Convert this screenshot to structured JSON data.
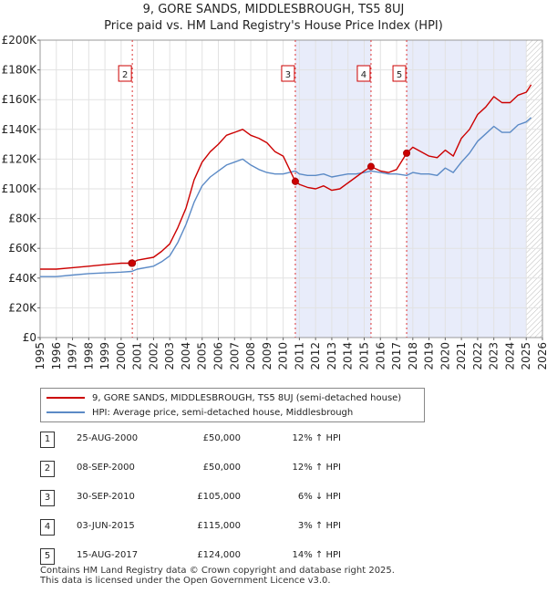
{
  "chart_data": {
    "type": "line",
    "title": "9, GORE SANDS, MIDDLESBROUGH, TS5 8UJ",
    "subtitle": "Price paid vs. HM Land Registry's House Price Index (HPI)",
    "xlim": [
      1995,
      2026
    ],
    "ylim": [
      0,
      200000
    ],
    "x_ticks": [
      "1995",
      "1996",
      "1997",
      "1998",
      "1999",
      "2000",
      "2001",
      "2002",
      "2003",
      "2004",
      "2005",
      "2006",
      "2007",
      "2008",
      "2009",
      "2010",
      "2011",
      "2012",
      "2013",
      "2014",
      "2015",
      "2016",
      "2017",
      "2018",
      "2019",
      "2020",
      "2021",
      "2022",
      "2023",
      "2024",
      "2025",
      "2026"
    ],
    "y_ticks": [
      "£0",
      "£20K",
      "£40K",
      "£60K",
      "£80K",
      "£100K",
      "£120K",
      "£140K",
      "£160K",
      "£180K",
      "£200K"
    ],
    "series": [
      {
        "name": "9, GORE SANDS, MIDDLESBROUGH, TS5 8UJ (semi-detached house)",
        "color": "#cc0000",
        "x": [
          1995,
          1996,
          1997,
          1998,
          1999,
          2000,
          2000.65,
          2001,
          2002,
          2002.5,
          2003,
          2003.5,
          2004,
          2004.5,
          2005,
          2005.5,
          2006,
          2006.5,
          2007,
          2007.5,
          2008,
          2008.5,
          2009,
          2009.5,
          2010,
          2010.75,
          2011,
          2011.5,
          2012,
          2012.5,
          2013,
          2013.5,
          2014,
          2014.5,
          2015,
          2015.42,
          2016,
          2016.5,
          2017,
          2017.62,
          2018,
          2018.5,
          2019,
          2019.5,
          2020,
          2020.5,
          2021,
          2021.5,
          2022,
          2022.5,
          2023,
          2023.5,
          2024,
          2024.5,
          2025,
          2025.3
        ],
        "values": [
          46000,
          46000,
          47000,
          48000,
          49000,
          50000,
          50000,
          52000,
          54000,
          58000,
          63000,
          74000,
          87000,
          106000,
          118000,
          125000,
          130000,
          136000,
          138000,
          140000,
          136000,
          134000,
          131000,
          125000,
          122000,
          105000,
          103000,
          101000,
          100000,
          102000,
          99000,
          100000,
          104000,
          108000,
          112000,
          115000,
          112000,
          111000,
          113000,
          124000,
          128000,
          125000,
          122000,
          121000,
          126000,
          122000,
          134000,
          140000,
          150000,
          155000,
          162000,
          158000,
          158000,
          163000,
          165000,
          170000
        ]
      },
      {
        "name": "HPI: Average price, semi-detached house, Middlesbrough",
        "color": "#5b8ac6",
        "x": [
          1995,
          1996,
          1997,
          1998,
          1999,
          2000,
          2000.65,
          2001,
          2002,
          2002.5,
          2003,
          2003.5,
          2004,
          2004.5,
          2005,
          2005.5,
          2006,
          2006.5,
          2007,
          2007.5,
          2008,
          2008.5,
          2009,
          2009.5,
          2010,
          2010.75,
          2011,
          2011.5,
          2012,
          2012.5,
          2013,
          2013.5,
          2014,
          2014.5,
          2015,
          2015.42,
          2016,
          2016.5,
          2017,
          2017.62,
          2018,
          2018.5,
          2019,
          2019.5,
          2020,
          2020.5,
          2021,
          2021.5,
          2022,
          2022.5,
          2023,
          2023.5,
          2024,
          2024.5,
          2025,
          2025.3
        ],
        "values": [
          41000,
          41000,
          42000,
          43000,
          43500,
          44000,
          44500,
          46000,
          48000,
          51000,
          55000,
          64000,
          76000,
          91000,
          102000,
          108000,
          112000,
          116000,
          118000,
          120000,
          116000,
          113000,
          111000,
          110000,
          110000,
          112000,
          110000,
          109000,
          109000,
          110000,
          108000,
          109000,
          110000,
          110000,
          111000,
          112000,
          111000,
          110000,
          110000,
          109000,
          111000,
          110000,
          110000,
          109000,
          114000,
          111000,
          118000,
          124000,
          132000,
          137000,
          142000,
          138000,
          138000,
          143000,
          145000,
          148000
        ]
      }
    ],
    "sales": [
      {
        "label": "1",
        "x": 2000.65,
        "price": 50000
      },
      {
        "label": "2",
        "x": 2000.69,
        "price": 50000
      },
      {
        "label": "3",
        "x": 2010.75,
        "price": 105000
      },
      {
        "label": "4",
        "x": 2015.42,
        "price": 115000
      },
      {
        "label": "5",
        "x": 2017.62,
        "price": 124000
      }
    ],
    "shaded_regions": [
      [
        2010.75,
        2015.42
      ],
      [
        2017.62,
        2025.0
      ]
    ],
    "hatch_from": 2025.0,
    "chart_markers": [
      "2",
      "3",
      "4",
      "5"
    ]
  },
  "transactions": [
    {
      "num": "1",
      "date": "25-AUG-2000",
      "price": "£50,000",
      "hpi": "12% ↑ HPI"
    },
    {
      "num": "2",
      "date": "08-SEP-2000",
      "price": "£50,000",
      "hpi": "12% ↑ HPI"
    },
    {
      "num": "3",
      "date": "30-SEP-2010",
      "price": "£105,000",
      "hpi": "6% ↓ HPI"
    },
    {
      "num": "4",
      "date": "03-JUN-2015",
      "price": "£115,000",
      "hpi": "3% ↑ HPI"
    },
    {
      "num": "5",
      "date": "15-AUG-2017",
      "price": "£124,000",
      "hpi": "14% ↑ HPI"
    }
  ],
  "footer": {
    "line1": "Contains HM Land Registry data © Crown copyright and database right 2025.",
    "line2": "This data is licensed under the Open Government Licence v3.0."
  }
}
